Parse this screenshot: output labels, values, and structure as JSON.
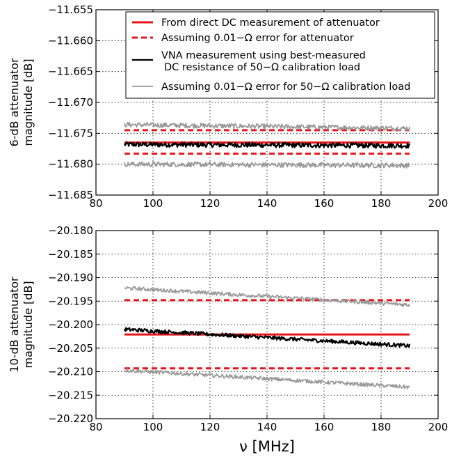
{
  "chart_data": [
    {
      "type": "line",
      "ylabel_lines": [
        "6-dB attenuator",
        "magnitude [dB]"
      ],
      "xlim": [
        80,
        200
      ],
      "ylim": [
        -11.685,
        -11.655
      ],
      "xticks": [
        80,
        100,
        120,
        140,
        160,
        180,
        200
      ],
      "xtick_labels": [
        "80",
        "100",
        "120",
        "140",
        "160",
        "180",
        "200"
      ],
      "yticks": [
        -11.655,
        -11.66,
        -11.665,
        -11.67,
        -11.675,
        -11.68,
        -11.685
      ],
      "ytick_labels": [
        "−11.655",
        "−11.660",
        "−11.665",
        "−11.670",
        "−11.675",
        "−11.680",
        "−11.685"
      ],
      "grid": true,
      "legend_position": "top-right",
      "x_range": [
        90,
        190
      ],
      "series": [
        {
          "name": "From direct DC measurement of attenuator",
          "color": "#e8141b",
          "style": "solid",
          "width": 3,
          "start": -11.6765,
          "end": -11.6765,
          "noise": 0
        },
        {
          "name": "Assuming 0.01−Ω error for attenuator",
          "color": "#e8141b",
          "style": "dashed",
          "width": 3,
          "start": -11.6745,
          "end": -11.6745,
          "noise": 0,
          "legend": true
        },
        {
          "color": "#e8141b",
          "style": "dashed",
          "width": 3,
          "start": -11.6783,
          "end": -11.6783,
          "noise": 0
        },
        {
          "name": "VNA measurement using best-measured",
          "name2": "DC resistance of 50−Ω calibration load",
          "color": "#000000",
          "style": "solid",
          "width": 2.2,
          "start": -11.6768,
          "end": -11.677,
          "noise": 0.0004
        },
        {
          "name": "Assuming 0.01−Ω error for 50−Ω calibration load",
          "color": "#999999",
          "style": "solid",
          "width": 1.8,
          "start": -11.6736,
          "end": -11.6742,
          "noise": 0.0004,
          "legend": true
        },
        {
          "color": "#999999",
          "style": "solid",
          "width": 1.8,
          "start": -11.68,
          "end": -11.6802,
          "noise": 0.0004
        }
      ]
    },
    {
      "type": "line",
      "ylabel_lines": [
        "10-dB attenuator",
        "magnitude [dB]"
      ],
      "xlabel": "ν [MHz]",
      "xlim": [
        80,
        200
      ],
      "ylim": [
        -20.22,
        -20.18
      ],
      "xticks": [
        80,
        100,
        120,
        140,
        160,
        180,
        200
      ],
      "xtick_labels": [
        "80",
        "100",
        "120",
        "140",
        "160",
        "180",
        "200"
      ],
      "yticks": [
        -20.18,
        -20.185,
        -20.19,
        -20.195,
        -20.2,
        -20.205,
        -20.21,
        -20.215,
        -20.22
      ],
      "ytick_labels": [
        "−20.180",
        "−20.185",
        "−20.190",
        "−20.195",
        "−20.200",
        "−20.205",
        "−20.210",
        "−20.215",
        "−20.220"
      ],
      "grid": true,
      "x_range": [
        90,
        190
      ],
      "series": [
        {
          "color": "#e8141b",
          "style": "solid",
          "width": 3,
          "start": -20.2021,
          "end": -20.2021,
          "noise": 0
        },
        {
          "color": "#e8141b",
          "style": "dashed",
          "width": 3,
          "start": -20.1948,
          "end": -20.1948,
          "noise": 0
        },
        {
          "color": "#e8141b",
          "style": "dashed",
          "width": 3,
          "start": -20.2093,
          "end": -20.2093,
          "noise": 0
        },
        {
          "color": "#000000",
          "style": "solid",
          "width": 2.2,
          "start": -20.201,
          "end": -20.2045,
          "noise": 0.0004
        },
        {
          "color": "#999999",
          "style": "solid",
          "width": 1.8,
          "start": -20.1922,
          "end": -20.1958,
          "noise": 0.0004
        },
        {
          "color": "#999999",
          "style": "solid",
          "width": 1.8,
          "start": -20.2097,
          "end": -20.2133,
          "noise": 0.0004
        }
      ]
    }
  ]
}
